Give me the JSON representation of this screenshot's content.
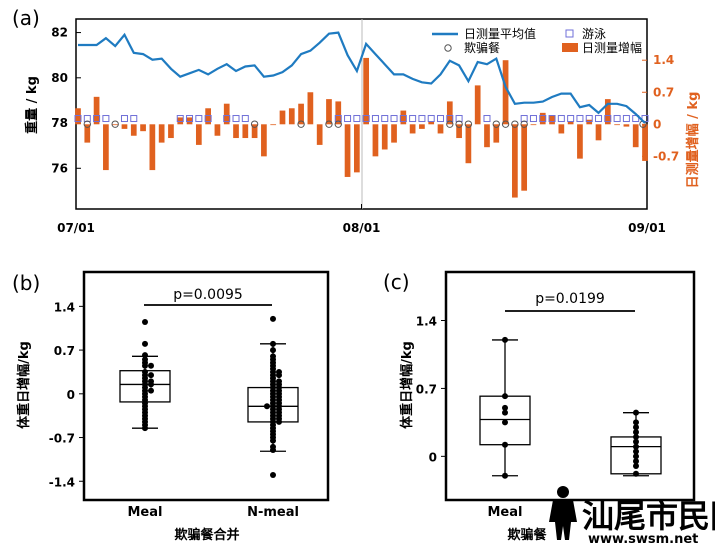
{
  "chart_data": [
    {
      "panel": "(a)",
      "type": "line",
      "x_ticks": [
        "07/01",
        "08/01",
        "09/01"
      ],
      "ylabel": "重量 / kg",
      "y_ticks": [
        "76",
        "78",
        "80",
        "82"
      ],
      "ylim": [
        74.2,
        82.6
      ],
      "y2label": "日测量增幅 / kg",
      "y2_ticks": [
        "-0.7",
        "0",
        "0.7",
        "1.4"
      ],
      "y2lim": [
        -1.85,
        2.3
      ],
      "legend": [
        "日测量平均值",
        "游泳",
        "欺骗餐",
        "日测量增幅"
      ],
      "weight": [
        81.45,
        81.45,
        81.45,
        81.75,
        81.4,
        81.9,
        81.1,
        81.05,
        80.8,
        80.85,
        80.4,
        80.05,
        80.2,
        80.35,
        80.15,
        80.4,
        80.6,
        80.3,
        80.5,
        80.55,
        80.05,
        80.1,
        80.25,
        80.55,
        81.05,
        81.2,
        81.55,
        81.95,
        82.0,
        81.0,
        80.3,
        81.5,
        81.05,
        80.6,
        80.15,
        80.15,
        79.95,
        79.8,
        79.75,
        80.15,
        80.75,
        80.55,
        79.85,
        80.7,
        80.6,
        80.85,
        79.6,
        78.85,
        78.9,
        78.9,
        78.95,
        79.15,
        79.3,
        79.3,
        78.7,
        78.8,
        78.45,
        78.85,
        78.85,
        78.75,
        78.4,
        78.0
      ],
      "diff": [
        0.35,
        -0.4,
        0.6,
        -1.0,
        0.0,
        -0.1,
        -0.25,
        -0.15,
        -1.0,
        -0.4,
        -0.3,
        0.15,
        0.15,
        -0.45,
        0.35,
        -0.25,
        0.45,
        -0.3,
        -0.3,
        -0.3,
        -0.7,
        0.0,
        0.3,
        0.35,
        0.45,
        0.7,
        -0.45,
        0.55,
        0.5,
        -1.15,
        -1.05,
        1.45,
        -0.7,
        -0.55,
        -0.4,
        0.3,
        -0.2,
        -0.1,
        0.05,
        -0.2,
        0.5,
        -0.3,
        -0.85,
        0.85,
        -0.5,
        -0.4,
        1.4,
        -1.6,
        -1.45,
        0.0,
        0.25,
        0.2,
        -0.2,
        0.05,
        -0.75,
        0.1,
        -0.35,
        0.55,
        0.0,
        -0.05,
        -0.5,
        -0.8
      ],
      "swim_days": [
        0,
        1,
        2,
        3,
        5,
        6,
        11,
        12,
        13,
        14,
        16,
        17,
        18,
        28,
        29,
        30,
        31,
        32,
        33,
        34,
        35,
        36,
        37,
        38,
        39,
        40,
        41,
        44,
        48,
        49,
        50,
        51,
        52,
        53,
        54,
        55,
        56,
        57,
        58,
        59,
        60,
        61
      ],
      "swim_level": 78.2,
      "cheat_days": [
        1,
        4,
        19,
        24,
        27,
        28,
        40,
        41,
        42,
        45,
        46,
        47,
        48,
        62
      ],
      "cheat_level": 77.95,
      "colors": {
        "line": "#1f7bc1",
        "bar": "#e0611f",
        "swim": "#6f6fd8",
        "cheat": "#555555"
      }
    },
    {
      "panel": "(b)",
      "type": "boxplot",
      "title": "欺骗餐合并",
      "ylabel": "体重日增幅/kg",
      "y_ticks": [
        "1.4",
        "0.7",
        "0",
        "-0.7",
        "-1.4"
      ],
      "ylim": [
        -1.7,
        1.95
      ],
      "categories": [
        "Meal",
        "N-meal"
      ],
      "box": [
        {
          "min": -0.55,
          "q1": -0.13,
          "median": 0.15,
          "q3": 0.37,
          "max": 0.6
        },
        {
          "min": -0.92,
          "q1": -0.45,
          "median": -0.2,
          "q3": 0.1,
          "max": 0.8
        }
      ],
      "points": [
        [
          1.15,
          0.8,
          0.62,
          0.55,
          0.5,
          0.45,
          0.45,
          0.35,
          0.3,
          0.3,
          0.25,
          0.2,
          0.2,
          0.15,
          0.15,
          0.1,
          0.05,
          0.05,
          0.0,
          -0.05,
          -0.1,
          -0.15,
          -0.2,
          -0.25,
          -0.3,
          -0.35,
          -0.4,
          -0.45,
          -0.5,
          -0.55
        ],
        [
          1.2,
          0.8,
          0.7,
          0.6,
          0.55,
          0.5,
          0.45,
          0.4,
          0.35,
          0.35,
          0.3,
          0.3,
          0.25,
          0.2,
          0.2,
          0.15,
          0.15,
          0.1,
          0.1,
          0.05,
          0.05,
          0.0,
          0.0,
          -0.05,
          -0.05,
          -0.1,
          -0.1,
          -0.15,
          -0.15,
          -0.2,
          -0.2,
          -0.2,
          -0.25,
          -0.25,
          -0.3,
          -0.3,
          -0.35,
          -0.35,
          -0.4,
          -0.4,
          -0.45,
          -0.45,
          -0.5,
          -0.55,
          -0.6,
          -0.65,
          -0.7,
          -0.75,
          -0.85,
          -0.9,
          -1.3
        ]
      ],
      "pvalue": "p=0.0095"
    },
    {
      "panel": "(c)",
      "type": "boxplot",
      "title": "欺骗餐",
      "ylabel": "体重日增幅/kg",
      "y_ticks": [
        "1.4",
        "0.7",
        "0"
      ],
      "ylim": [
        -0.45,
        1.9
      ],
      "categories": [
        "Meal",
        ""
      ],
      "box": [
        {
          "min": -0.2,
          "q1": 0.12,
          "median": 0.38,
          "q3": 0.62,
          "max": 1.2
        },
        {
          "min": -0.2,
          "q1": -0.18,
          "median": 0.1,
          "q3": 0.2,
          "max": 0.45
        }
      ],
      "points": [
        [
          1.2,
          0.62,
          0.5,
          0.45,
          0.35,
          0.12,
          -0.2
        ],
        [
          0.45,
          0.35,
          0.3,
          0.25,
          0.2,
          0.15,
          0.1,
          0.05,
          0.0,
          -0.05,
          -0.1,
          -0.18
        ]
      ],
      "pvalue": "p=0.0199"
    }
  ],
  "watermark": {
    "brand": "汕尾市民网",
    "url": "www.swsm.net"
  }
}
